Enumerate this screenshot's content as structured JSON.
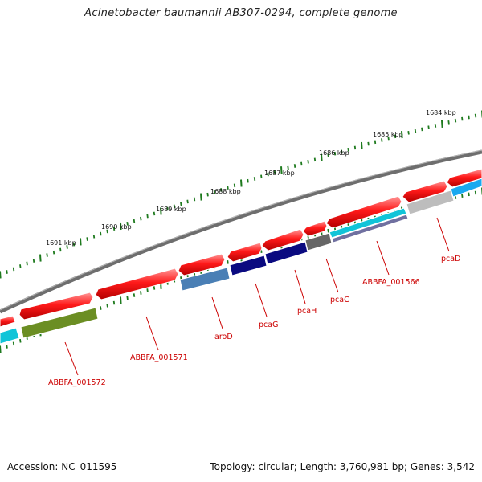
{
  "title": "Acinetobacter baumannii AB307-0294, complete genome",
  "footer": {
    "accession": "Accession: NC_011595",
    "summary": "Topology: circular; Length: 3,760,981 bp; Genes: 3,542"
  },
  "kbp_labels": [
    "1684 kbp",
    "1685 kbp",
    "1686 kbp",
    "1687 kbp",
    "1688 kbp",
    "1689 kbp",
    "1690 kbp",
    "1691 kbp"
  ],
  "gene_labels": [
    "ABBFA_001572",
    "ABBFA_001571",
    "aroD",
    "pcaG",
    "pcaH",
    "pcaC",
    "ABBFA_001566",
    "pcaD"
  ],
  "colors": {
    "backbone": "#7a7a7a",
    "ticks": "#1e7a1e",
    "label": "#cc0000",
    "gene_red": "#ff1a1a",
    "olive": "#6b8e23",
    "cyan": "#11c4d8",
    "steel_blue": "#4a7fb5",
    "navy": "#0a0a80",
    "dark_gray": "#666666",
    "purple": "#7070a0",
    "light_gray": "#bdbdbd",
    "sky_blue": "#1aa9f0"
  }
}
